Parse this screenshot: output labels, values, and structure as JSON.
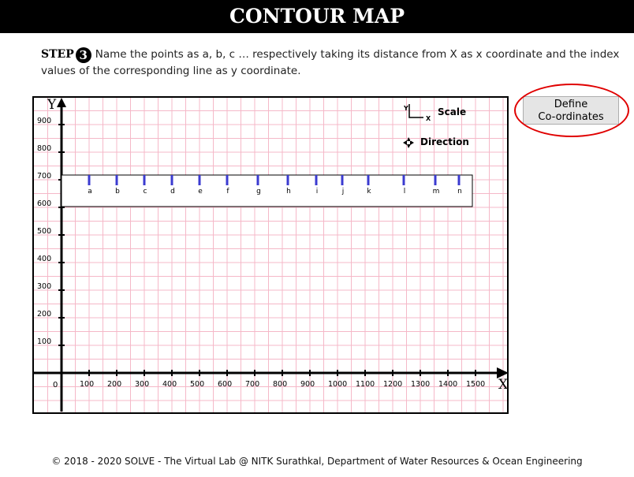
{
  "header": {
    "title": "CONTOUR MAP"
  },
  "instruction": {
    "step_label": "STEP",
    "step_number": "3",
    "text": "Name the points as a, b, c … respectively taking its distance from X as x coordinate and the index values of the corresponding line as y coordinate."
  },
  "define_button": {
    "line1": "Define",
    "line2": "Co-ordinates"
  },
  "map": {
    "y_axis_label": "Y",
    "x_axis_label": "X",
    "origin_label": "0",
    "y_ticks": [
      "900",
      "800",
      "700",
      "600",
      "500",
      "400",
      "300",
      "200",
      "100"
    ],
    "x_ticks": [
      "100",
      "200",
      "300",
      "400",
      "500",
      "600",
      "700",
      "800",
      "900",
      "1000",
      "1100",
      "1200",
      "1300",
      "1400",
      "1500"
    ],
    "legend_scale_label": "Scale",
    "legend_scale_y": "Y",
    "legend_scale_x": "X",
    "legend_direction_label": "Direction",
    "points": [
      "a",
      "b",
      "c",
      "d",
      "e",
      "f",
      "g",
      "h",
      "i",
      "j",
      "k",
      "l",
      "m",
      "n"
    ],
    "colors": {
      "grid": "#f5b8c8",
      "marker": "#3b3bd0",
      "highlight": "#e00000"
    }
  },
  "footer": {
    "text": "© 2018 - 2020 SOLVE - The Virtual Lab @ NITK Surathkal, Department of Water Resources & Ocean Engineering"
  }
}
